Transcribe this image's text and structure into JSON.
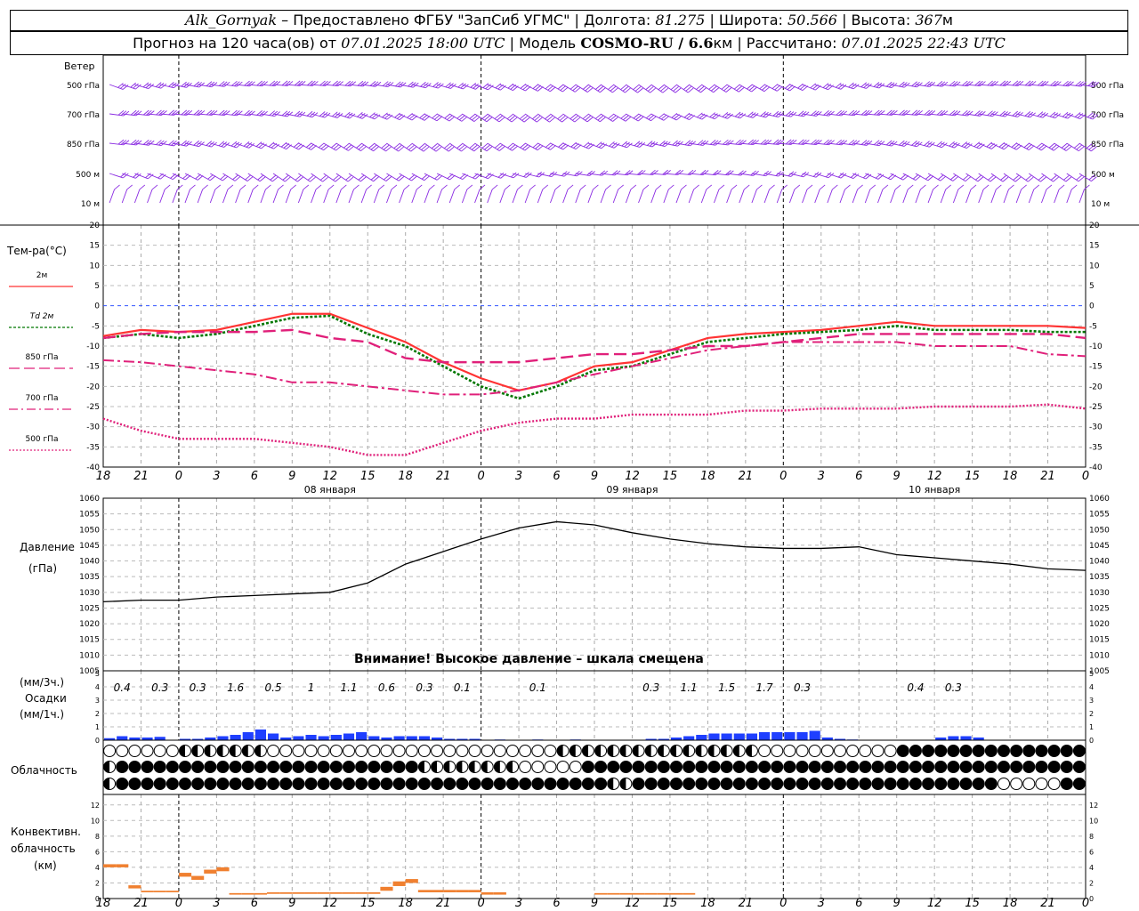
{
  "header": {
    "station": "Alk_Gornyak",
    "provider": "– Предоставлено ФГБУ \"ЗапСиб УГМС\" |",
    "lon_label": "Долгота:",
    "lon_value": "81.275",
    "lat_label": "| Широта:",
    "lat_value": "50.566",
    "alt_label": "| Высота:",
    "alt_value": "367",
    "alt_unit": "м",
    "forecast_text": "Прогноз на 120 часа(ов) от",
    "forecast_from": "07.01.2025 18:00 UTC",
    "model_label": "| Модель",
    "model_name": "COSMO-RU / 6.6",
    "model_unit": "км",
    "calc_label": "| Рассчитано:",
    "calc_time": "07.01.2025 22:43 UTC"
  },
  "wind_panel": {
    "title": "Ветер",
    "levels": [
      "500 гПа",
      "700 гПа",
      "850 гПа",
      "500 м",
      "10  м"
    ],
    "color": "#8a2be2"
  },
  "temp_panel": {
    "title": "Тем-ра(°C)",
    "legend": [
      {
        "label": "2м",
        "color": "#ff3333",
        "style": "solid"
      },
      {
        "label": "Td  2м",
        "color": "#007700",
        "style": "dotted"
      },
      {
        "label": "850 гПа",
        "color": "#e0207a",
        "style": "dash"
      },
      {
        "label": "700 гПа",
        "color": "#e0207a",
        "style": "dashdot"
      },
      {
        "label": "500 гПа",
        "color": "#e0207a",
        "style": "dot"
      }
    ],
    "ticks": [
      "20",
      "15",
      "10",
      "5",
      "0",
      "-5",
      "-10",
      "-15",
      "-20",
      "-25",
      "-30",
      "-35",
      "-40"
    ]
  },
  "time_axis": {
    "hour_labels": [
      "18",
      "21",
      "0",
      "3",
      "6",
      "9",
      "12",
      "15",
      "18",
      "21",
      "0",
      "3",
      "6",
      "9",
      "12",
      "15",
      "18",
      "21",
      "0",
      "3",
      "6",
      "9",
      "12",
      "15",
      "18",
      "21",
      "0"
    ],
    "days": [
      "08 января",
      "09 января",
      "10 января"
    ]
  },
  "pressure_panel": {
    "title": "Давление",
    "unit": "(гПа)",
    "ticks": [
      "1060",
      "1055",
      "1050",
      "1045",
      "1040",
      "1035",
      "1030",
      "1025",
      "1020",
      "1015",
      "1010",
      "1005"
    ],
    "warning": "Внимание! Высокое давление – шкала смещена"
  },
  "precip_panel": {
    "unit3": "(мм/3ч.)",
    "title": "Осадки",
    "unit1": "(мм/1ч.)",
    "ticks": [
      "5",
      "4",
      "3",
      "2",
      "1",
      "0"
    ],
    "totals": [
      {
        "t": 1.5,
        "v": "0.4"
      },
      {
        "t": 4.5,
        "v": "0.3"
      },
      {
        "t": 7.5,
        "v": "0.3"
      },
      {
        "t": 10.5,
        "v": "1.6"
      },
      {
        "t": 13.5,
        "v": "0.5"
      },
      {
        "t": 16.5,
        "v": "1"
      },
      {
        "t": 19.5,
        "v": "1.1"
      },
      {
        "t": 22.5,
        "v": "0.6"
      },
      {
        "t": 25.5,
        "v": "0.3"
      },
      {
        "t": 28.5,
        "v": "0.1"
      },
      {
        "t": 34.5,
        "v": "0.1"
      },
      {
        "t": 43.5,
        "v": "0.3"
      },
      {
        "t": 46.5,
        "v": "1.1"
      },
      {
        "t": 49.5,
        "v": "1.5"
      },
      {
        "t": 52.5,
        "v": "1.7"
      },
      {
        "t": 55.5,
        "v": "0.3"
      },
      {
        "t": 64.5,
        "v": "0.4"
      },
      {
        "t": 67.5,
        "v": "0.3"
      }
    ],
    "color": "#1f3fff"
  },
  "cloud_panel": {
    "title": "Облачность"
  },
  "conv_panel": {
    "title1": "Конвективн.",
    "title2": "облачность",
    "unit": "(км)",
    "ticks": [
      "12",
      "10",
      "8",
      "6",
      "4",
      "2",
      "0"
    ],
    "color": "#f08030"
  },
  "chart_data": [
    {
      "type": "line",
      "title": "Тем-ра(°C)",
      "x_hours_from_start": [
        0,
        3,
        6,
        9,
        12,
        15,
        18,
        21,
        24,
        27,
        30,
        33,
        36,
        39,
        42,
        45,
        48,
        51,
        54,
        57,
        60,
        63,
        66,
        69,
        72,
        75,
        78
      ],
      "ylim": [
        -40,
        20
      ],
      "series": [
        {
          "name": "2м",
          "values": [
            -7.5,
            -6,
            -6.5,
            -6,
            -4,
            -2,
            -2,
            -5.5,
            -9,
            -14,
            -18,
            -21,
            -19,
            -15,
            -14,
            -11,
            -8,
            -7,
            -6.5,
            -6,
            -5,
            -4,
            -5,
            -5,
            -5,
            -5,
            -5.5
          ]
        },
        {
          "name": "Td  2м",
          "values": [
            -8,
            -7,
            -8,
            -7,
            -5,
            -3,
            -2.5,
            -7,
            -10,
            -15,
            -20,
            -23,
            -20,
            -16,
            -15,
            -12,
            -9,
            -8,
            -7,
            -6.5,
            -6,
            -5,
            -6,
            -6,
            -6,
            -6.5,
            -6.5
          ]
        },
        {
          "name": "850 гПа",
          "values": [
            -8,
            -7,
            -6.5,
            -6.5,
            -6.5,
            -6,
            -8,
            -9,
            -13,
            -14,
            -14,
            -14,
            -13,
            -12,
            -12,
            -11,
            -10,
            -10,
            -9,
            -8,
            -7,
            -7,
            -7,
            -7,
            -7,
            -7,
            -8
          ]
        },
        {
          "name": "700 гПа",
          "values": [
            -13.5,
            -14,
            -15,
            -16,
            -17,
            -19,
            -19,
            -20,
            -21,
            -22,
            -22,
            -21,
            -19,
            -17,
            -15,
            -13,
            -11,
            -10,
            -9,
            -9,
            -9,
            -9,
            -10,
            -10,
            -10,
            -12,
            -12.5
          ]
        },
        {
          "name": "500 гПа",
          "values": [
            -28,
            -31,
            -33,
            -33,
            -33,
            -34,
            -35,
            -37,
            -37,
            -34,
            -31,
            -29,
            -28,
            -28,
            -27,
            -27,
            -27,
            -26,
            -26,
            -25.5,
            -25.5,
            -25.5,
            -25,
            -25,
            -25,
            -24.5,
            -25.5
          ]
        }
      ]
    },
    {
      "type": "line",
      "title": "Давление",
      "ylim": [
        1005,
        1060
      ],
      "x_hours_from_start": [
        0,
        3,
        6,
        9,
        12,
        15,
        18,
        21,
        24,
        27,
        30,
        33,
        36,
        39,
        42,
        45,
        48,
        51,
        54,
        57,
        60,
        63,
        66,
        69,
        72,
        75,
        78
      ],
      "series": [
        {
          "name": "Давление",
          "values": [
            1027,
            1027.5,
            1027.5,
            1028.5,
            1029,
            1029.5,
            1030,
            1033,
            1039,
            1043,
            1047,
            1050.5,
            1052.5,
            1051.5,
            1049,
            1047,
            1045.5,
            1044.5,
            1044,
            1044,
            1044.5,
            1042,
            1041,
            1040,
            1039,
            1037.5,
            1037
          ]
        }
      ]
    },
    {
      "type": "bar",
      "title": "Осадки (мм/1ч.)",
      "ylim": [
        0,
        5
      ],
      "x_hours_from_start": [
        0,
        1,
        2,
        3,
        4,
        5,
        6,
        7,
        8,
        9,
        10,
        11,
        12,
        13,
        14,
        15,
        16,
        17,
        18,
        19,
        20,
        21,
        22,
        23,
        24,
        25,
        26,
        27,
        28,
        29,
        30,
        31,
        32,
        33,
        34,
        35,
        36,
        37,
        38,
        39,
        40,
        41,
        42,
        43,
        44,
        45,
        46,
        47,
        48,
        49,
        50,
        51,
        52,
        53,
        54,
        55,
        56,
        57,
        58,
        59,
        60,
        61,
        62,
        63,
        64,
        65,
        66,
        67,
        68,
        69,
        70,
        71,
        72,
        73,
        74,
        75,
        76,
        77,
        78
      ],
      "values": [
        0.15,
        0.3,
        0.2,
        0.2,
        0.25,
        0,
        0.1,
        0.1,
        0.2,
        0.3,
        0.4,
        0.6,
        0.8,
        0.5,
        0.2,
        0.3,
        0.4,
        0.3,
        0.4,
        0.5,
        0.6,
        0.3,
        0.2,
        0.3,
        0.3,
        0.3,
        0.2,
        0.1,
        0.1,
        0.1,
        0,
        0.05,
        0,
        0,
        0.05,
        0,
        0,
        0.05,
        0,
        0,
        0,
        0,
        0,
        0.1,
        0.1,
        0.2,
        0.3,
        0.4,
        0.5,
        0.5,
        0.5,
        0.5,
        0.6,
        0.6,
        0.6,
        0.6,
        0.7,
        0.2,
        0.1,
        0.05,
        0,
        0,
        0,
        0,
        0,
        0,
        0.2,
        0.3,
        0.3,
        0.2,
        0,
        0,
        0,
        0,
        0,
        0,
        0,
        0,
        0
      ]
    },
    {
      "type": "bar",
      "title": "Конвективн. облачность (км)",
      "ylim": [
        0,
        13
      ],
      "x_hours_from_start": [
        0,
        1,
        2,
        3,
        4,
        5,
        6,
        7,
        8,
        9,
        10,
        11,
        12,
        13,
        14,
        15,
        16,
        17,
        18,
        19,
        20,
        21,
        22,
        23,
        24,
        25,
        26,
        27,
        28,
        29,
        30,
        31,
        32,
        33,
        34,
        35,
        36,
        37,
        38,
        39,
        40,
        41,
        42,
        43,
        44,
        45,
        46,
        47,
        48,
        49,
        50,
        51,
        52,
        53,
        54,
        55,
        56,
        57,
        58,
        59,
        60,
        61,
        62,
        63,
        64,
        65,
        66,
        67,
        68,
        69,
        70,
        71,
        72,
        73,
        74,
        75,
        76,
        77,
        78
      ],
      "base_km": [
        4,
        4,
        1.3,
        0.8,
        0.8,
        0.8,
        2.8,
        2.4,
        3.2,
        3.5,
        0.5,
        0.5,
        0.5,
        0.6,
        0.6,
        0.6,
        0.6,
        0.6,
        0.6,
        0.6,
        0.6,
        0.6,
        1,
        1.6,
        2,
        0.8,
        0.8,
        0.8,
        0.8,
        0.8,
        0.5,
        0.5,
        0,
        0,
        0,
        0,
        0,
        0,
        0,
        0.5,
        0.5,
        0.5,
        0.5,
        0.5,
        0.5,
        0.5,
        0.5,
        0,
        0,
        0,
        0,
        0,
        0,
        0,
        0,
        0,
        0,
        0,
        0,
        0,
        0,
        0,
        0,
        0,
        0,
        0,
        0,
        0,
        0,
        0,
        0,
        0,
        0,
        0,
        0,
        0,
        0,
        0,
        0
      ],
      "top_km": [
        4.4,
        4.4,
        1.7,
        1.0,
        1.0,
        1.0,
        3.3,
        2.9,
        3.7,
        4.0,
        0.7,
        0.7,
        0.7,
        0.8,
        0.8,
        0.8,
        0.8,
        0.8,
        0.8,
        0.8,
        0.8,
        0.8,
        1.5,
        2.2,
        2.5,
        1.1,
        1.1,
        1.1,
        1.1,
        1.1,
        0.8,
        0.8,
        0,
        0,
        0,
        0,
        0,
        0,
        0,
        0.7,
        0.7,
        0.7,
        0.7,
        0.7,
        0.7,
        0.7,
        0.7,
        0,
        0,
        0,
        0,
        0,
        0,
        0,
        0,
        0,
        0,
        0,
        0,
        0,
        0,
        0,
        0,
        0,
        0,
        0,
        0,
        0,
        0,
        0,
        0,
        0,
        0,
        0,
        0,
        0,
        0,
        0,
        0
      ]
    }
  ]
}
